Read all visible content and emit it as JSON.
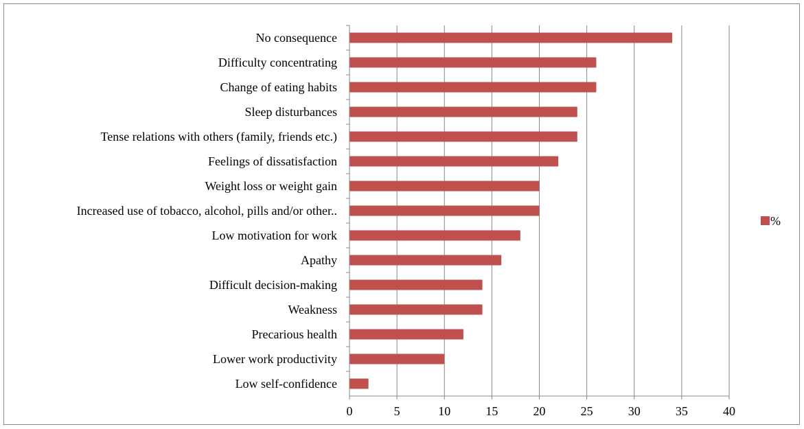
{
  "chart_data": {
    "type": "bar",
    "orientation": "horizontal",
    "categories": [
      "No consequence",
      "Difficulty concentrating",
      "Change of eating habits",
      "Sleep disturbances",
      "Tense relations with others (family, friends etc.)",
      "Feelings of dissatisfaction",
      "Weight loss or weight gain",
      "Increased use of tobacco, alcohol, pills and/or other..",
      "Low motivation for work",
      "Apathy",
      "Difficult decision-making",
      "Weakness",
      "Precarious health",
      "Lower work productivity",
      "Low self-confidence"
    ],
    "series": [
      {
        "name": "%",
        "color": "#c0504d",
        "values": [
          34,
          26,
          26,
          24,
          24,
          22,
          20,
          20,
          18,
          16,
          14,
          14,
          12,
          10,
          2
        ]
      }
    ],
    "xlim": [
      0,
      40
    ],
    "xticks": [
      "0",
      "5",
      "10",
      "15",
      "20",
      "25",
      "30",
      "35",
      "40"
    ],
    "grid": "vertical",
    "legend_position": "right"
  }
}
